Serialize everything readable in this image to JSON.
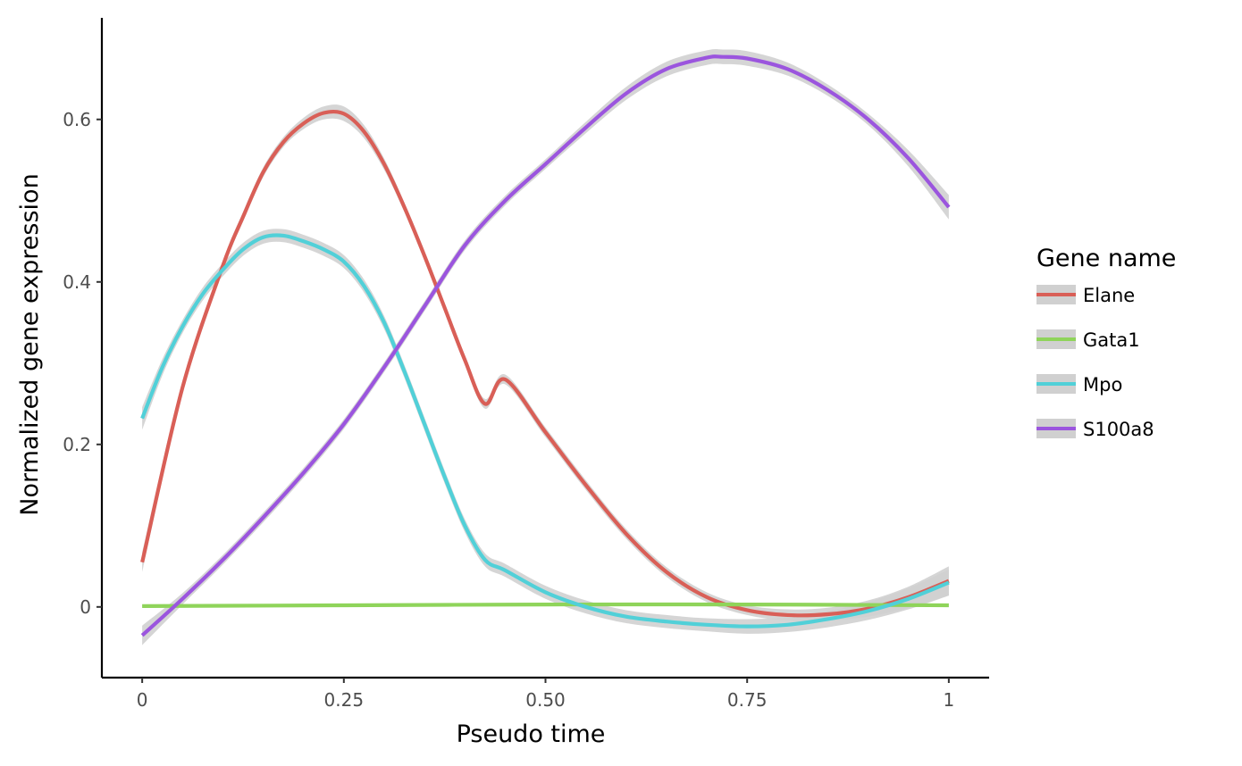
{
  "chart_data": {
    "type": "line",
    "xlabel": "Pseudo time",
    "ylabel": "Normalized gene expression",
    "xlim": [
      -0.05,
      1.05
    ],
    "ylim": [
      -0.087,
      0.725
    ],
    "x_ticks": [
      0,
      0.25,
      0.5,
      0.75,
      1
    ],
    "x_tick_labels": [
      "0",
      "0.25",
      "0.50",
      "0.75",
      "1"
    ],
    "y_ticks": [
      0,
      0.2,
      0.4,
      0.6
    ],
    "y_tick_labels": [
      "0",
      "0.2",
      "0.4",
      "0.6"
    ],
    "grid": false,
    "confidence_band_color": "#d0d0d0",
    "legend": {
      "title": "Gene name",
      "placement": "right"
    },
    "series": [
      {
        "name": "Elane",
        "color": "#d95f57",
        "x": [
          0,
          0.05,
          0.1,
          0.125,
          0.15,
          0.175,
          0.2,
          0.225,
          0.25,
          0.275,
          0.3,
          0.325,
          0.35,
          0.375,
          0.4,
          0.425,
          0.45,
          0.5,
          0.55,
          0.6,
          0.65,
          0.7,
          0.75,
          0.8,
          0.85,
          0.9,
          0.95,
          1.0
        ],
        "y": [
          0.055,
          0.27,
          0.42,
          0.48,
          0.535,
          0.572,
          0.595,
          0.608,
          0.607,
          0.585,
          0.545,
          0.492,
          0.432,
          0.368,
          0.304,
          0.25,
          0.28,
          0.215,
          0.15,
          0.09,
          0.043,
          0.012,
          -0.004,
          -0.01,
          -0.009,
          -0.002,
          0.012,
          0.032
        ],
        "band": [
          0.012,
          0.008,
          0.006,
          0.006,
          0.006,
          0.006,
          0.007,
          0.008,
          0.009,
          0.008,
          0.007,
          0.006,
          0.006,
          0.006,
          0.006,
          0.006,
          0.006,
          0.006,
          0.006,
          0.006,
          0.006,
          0.006,
          0.006,
          0.007,
          0.008,
          0.01,
          0.013,
          0.018
        ]
      },
      {
        "name": "Gata1",
        "color": "#8fd45a",
        "x": [
          0,
          0.25,
          0.5,
          0.75,
          1.0
        ],
        "y": [
          0.001,
          0.002,
          0.003,
          0.003,
          0.002
        ],
        "band": [
          0.002,
          0.002,
          0.002,
          0.002,
          0.002
        ]
      },
      {
        "name": "Mpo",
        "color": "#51d0d8",
        "x": [
          0,
          0.025,
          0.05,
          0.075,
          0.1,
          0.125,
          0.15,
          0.175,
          0.2,
          0.225,
          0.25,
          0.275,
          0.3,
          0.325,
          0.35,
          0.375,
          0.4,
          0.425,
          0.45,
          0.5,
          0.55,
          0.6,
          0.65,
          0.7,
          0.75,
          0.8,
          0.85,
          0.9,
          0.95,
          1.0
        ],
        "y": [
          0.232,
          0.295,
          0.345,
          0.385,
          0.415,
          0.44,
          0.455,
          0.457,
          0.45,
          0.44,
          0.425,
          0.395,
          0.35,
          0.29,
          0.225,
          0.16,
          0.1,
          0.058,
          0.045,
          0.018,
          0.0,
          -0.012,
          -0.018,
          -0.022,
          -0.024,
          -0.022,
          -0.015,
          -0.005,
          0.01,
          0.03
        ],
        "band": [
          0.014,
          0.01,
          0.008,
          0.008,
          0.008,
          0.008,
          0.008,
          0.008,
          0.008,
          0.008,
          0.008,
          0.008,
          0.008,
          0.008,
          0.008,
          0.008,
          0.008,
          0.008,
          0.008,
          0.008,
          0.008,
          0.008,
          0.008,
          0.008,
          0.009,
          0.009,
          0.01,
          0.011,
          0.013,
          0.016
        ]
      },
      {
        "name": "S100a8",
        "color": "#9b55de",
        "x": [
          0,
          0.05,
          0.1,
          0.15,
          0.2,
          0.25,
          0.3,
          0.35,
          0.4,
          0.45,
          0.5,
          0.55,
          0.6,
          0.65,
          0.7,
          0.72,
          0.75,
          0.8,
          0.85,
          0.9,
          0.95,
          1.0
        ],
        "y": [
          -0.035,
          0.01,
          0.058,
          0.11,
          0.165,
          0.225,
          0.295,
          0.37,
          0.445,
          0.5,
          0.545,
          0.59,
          0.632,
          0.662,
          0.676,
          0.677,
          0.675,
          0.662,
          0.636,
          0.6,
          0.552,
          0.492
        ],
        "band": [
          0.012,
          0.007,
          0.006,
          0.006,
          0.006,
          0.006,
          0.006,
          0.006,
          0.006,
          0.006,
          0.006,
          0.007,
          0.008,
          0.009,
          0.009,
          0.009,
          0.009,
          0.008,
          0.007,
          0.007,
          0.01,
          0.015
        ]
      }
    ]
  }
}
